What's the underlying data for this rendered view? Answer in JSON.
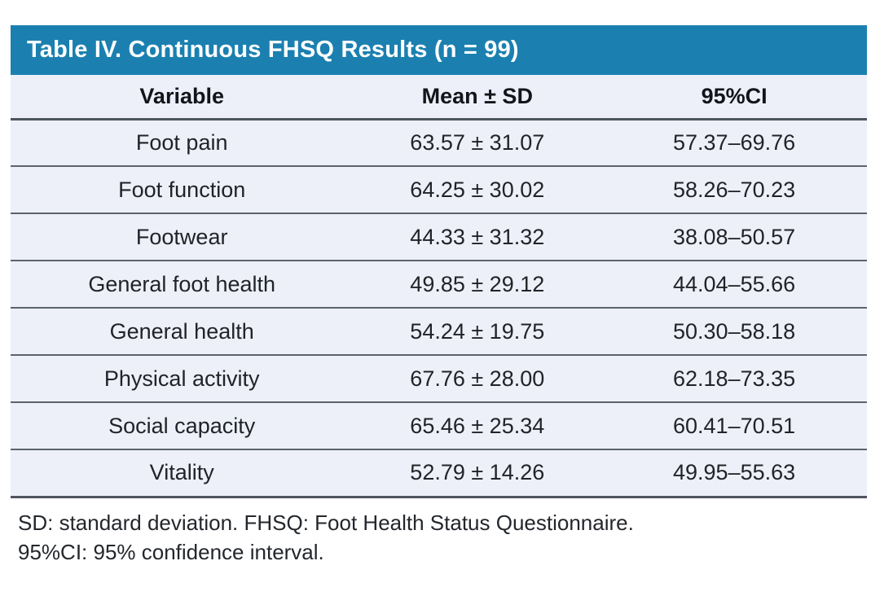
{
  "table": {
    "title": "Table IV. Continuous FHSQ Results (n = 99)",
    "columns": {
      "variable": "Variable",
      "mean_sd": "Mean ± SD",
      "ci": "95%CI"
    },
    "rows": [
      {
        "variable": "Foot pain",
        "mean_sd": "63.57 ± 31.07",
        "ci": "57.37–69.76"
      },
      {
        "variable": "Foot function",
        "mean_sd": "64.25 ± 30.02",
        "ci": "58.26–70.23"
      },
      {
        "variable": "Footwear",
        "mean_sd": "44.33 ± 31.32",
        "ci": "38.08–50.57"
      },
      {
        "variable": "General foot health",
        "mean_sd": "49.85 ± 29.12",
        "ci": "44.04–55.66"
      },
      {
        "variable": "General health",
        "mean_sd": "54.24 ± 19.75",
        "ci": "50.30–58.18"
      },
      {
        "variable": "Physical activity",
        "mean_sd": "67.76 ± 28.00",
        "ci": "62.18–73.35"
      },
      {
        "variable": "Social capacity",
        "mean_sd": "65.46 ± 25.34",
        "ci": "60.41–70.51"
      },
      {
        "variable": "Vitality",
        "mean_sd": "52.79 ± 14.26",
        "ci": "49.95–55.63"
      }
    ],
    "footnotes": [
      "SD: standard deviation. FHSQ: Foot Health Status Questionnaire.",
      "95%CI: 95% confidence interval."
    ],
    "colors": {
      "title_bar_bg": "#1b80b0",
      "title_text": "#ffffff",
      "row_bg": "#edf0f8",
      "divider": "#5c636d",
      "body_text": "#202429"
    }
  }
}
